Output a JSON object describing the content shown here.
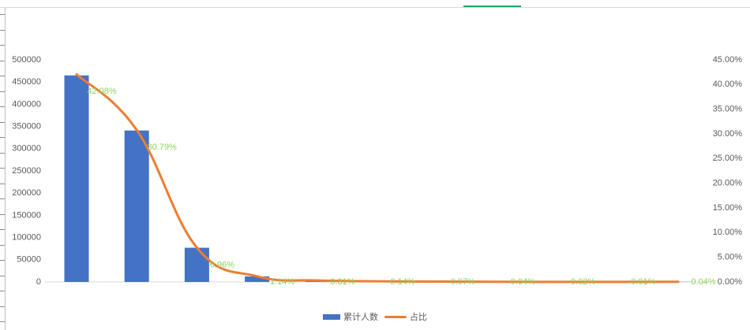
{
  "chart_data": {
    "type": "bar",
    "categories": [
      "",
      "",
      "",
      "",
      "",
      "",
      "",
      "",
      "",
      "",
      ""
    ],
    "series": [
      {
        "name": "累计人数",
        "type": "bar",
        "axis": "left",
        "values": [
          465000,
          341000,
          77000,
          12500,
          3400,
          1550,
          775,
          440,
          220,
          110,
          440
        ]
      },
      {
        "name": "占比",
        "type": "line",
        "axis": "right",
        "smooth": true,
        "values": [
          0.4208,
          0.3079,
          0.0696,
          0.0114,
          0.0031,
          0.0014,
          0.0007,
          0.0004,
          0.0002,
          0.0001,
          0.0004
        ],
        "labels": [
          "42.08%",
          "30.79%",
          "6.96%",
          "1.14%",
          "0.31%",
          "0.14%",
          "0.07%",
          "0.04%",
          "0.02%",
          "0.01%",
          "0.04%"
        ]
      }
    ],
    "y_left": {
      "min": 0,
      "max": 500000,
      "ticks": [
        "0",
        "50000",
        "100000",
        "150000",
        "200000",
        "250000",
        "300000",
        "350000",
        "400000",
        "450000",
        "500000"
      ]
    },
    "y_right": {
      "min": 0,
      "max": 0.45,
      "ticks": [
        "0.00%",
        "5.00%",
        "10.00%",
        "15.00%",
        "20.00%",
        "25.00%",
        "30.00%",
        "35.00%",
        "40.00%",
        "45.00%"
      ]
    },
    "grid": false,
    "legend": {
      "position": "bottom",
      "items": [
        "累计人数",
        "占比"
      ]
    },
    "colors": {
      "bar": "#4472c4",
      "line": "#ed7d31",
      "data_label": "#8fd15a",
      "axis_text": "#595959"
    }
  }
}
